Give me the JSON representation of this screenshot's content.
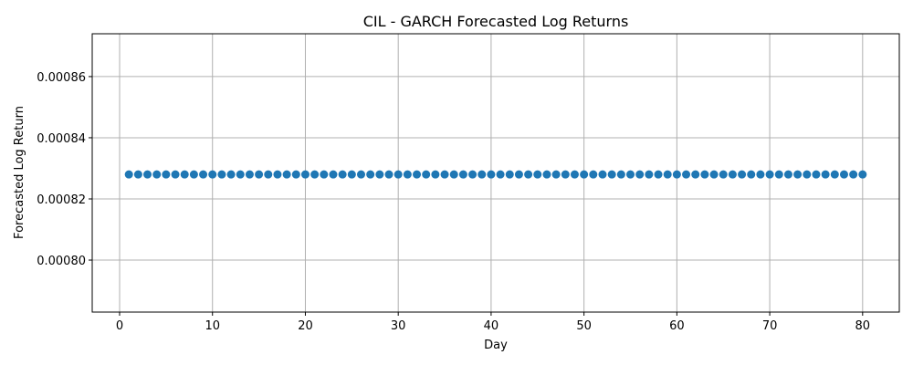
{
  "chart_data": {
    "type": "scatter",
    "title": "CIL - GARCH Forecasted Log Returns",
    "xlabel": "Day",
    "ylabel": "Forecasted Log Return",
    "xlim": [
      -2.95,
      83.95
    ],
    "ylim": [
      0.000783,
      0.000874
    ],
    "x_ticks": [
      0,
      10,
      20,
      30,
      40,
      50,
      60,
      70,
      80
    ],
    "y_ticks": [
      0.0008,
      0.00082,
      0.00084,
      0.00086
    ],
    "x_tick_labels": [
      "0",
      "10",
      "20",
      "30",
      "40",
      "50",
      "60",
      "70",
      "80"
    ],
    "y_tick_labels": [
      "0.00080",
      "0.00082",
      "0.00084",
      "0.00086"
    ],
    "grid": true,
    "marker_color": "#1f77b4",
    "x_start": 1,
    "x_end": 80,
    "constant_value": 0.000828
  }
}
